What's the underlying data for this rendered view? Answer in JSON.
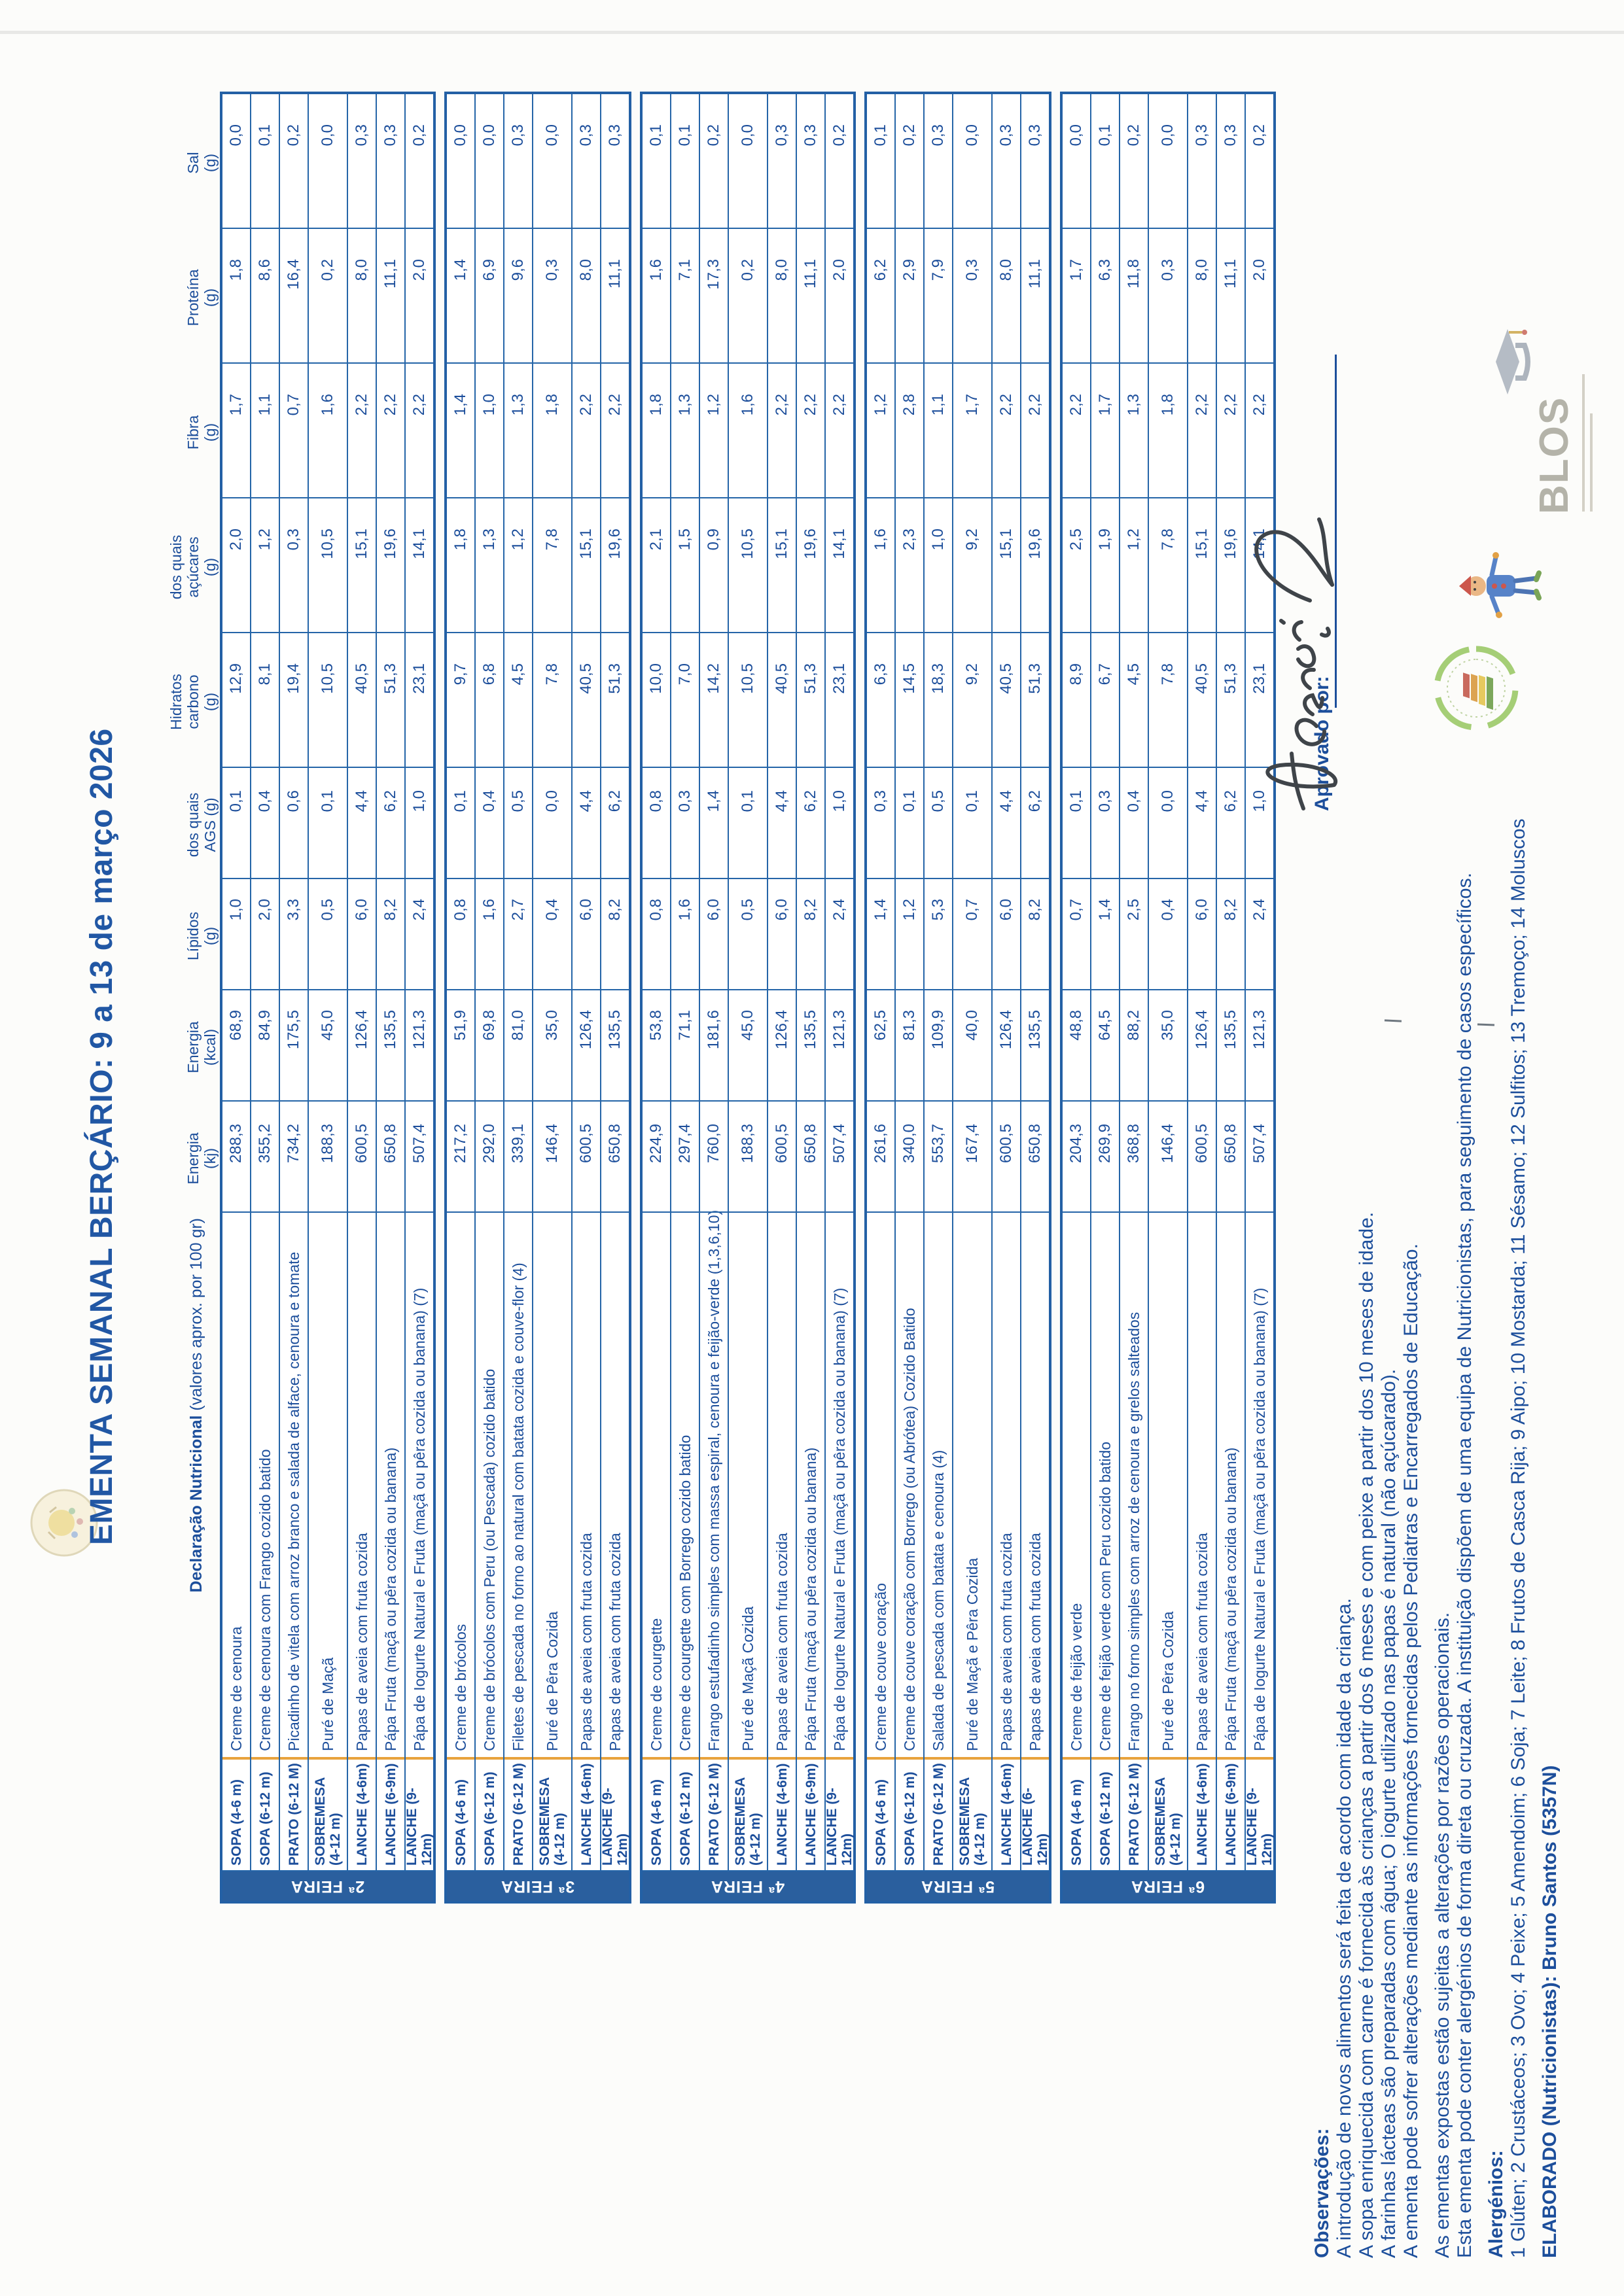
{
  "title": "EMENTA SEMANAL BERÇÁRIO: 9 a 13 de março 2026",
  "nutrition_header": {
    "label_bold": "Declaração Nutricional",
    "label_rest": " (valores aprox. por 100 gr)",
    "columns": [
      [
        "Energia",
        "(kj)"
      ],
      [
        "Energia",
        "(kcal)"
      ],
      [
        "Lípidos",
        "(g)"
      ],
      [
        "dos quais",
        "AGS (g)"
      ],
      [
        "Hidratos",
        "carbono",
        "(g)"
      ],
      [
        "dos quais",
        "açúcares",
        "(g)"
      ],
      [
        "Fibra",
        "(g)"
      ],
      [
        "Proteína",
        "(g)"
      ],
      [
        "Sal",
        "(g)"
      ]
    ]
  },
  "days": [
    {
      "label": "2ª FEIRA",
      "rows": [
        {
          "meal": "SOPA (4-6 m)",
          "dish": "Creme de cenoura",
          "values": [
            "288,3",
            "68,9",
            "1,0",
            "0,1",
            "12,9",
            "2,0",
            "1,7",
            "1,8",
            "0,0"
          ]
        },
        {
          "meal": "SOPA (6-12 m)",
          "dish": "Creme de cenoura com Frango cozido batido",
          "values": [
            "355,2",
            "84,9",
            "2,0",
            "0,4",
            "8,1",
            "1,2",
            "1,1",
            "8,6",
            "0,1"
          ]
        },
        {
          "meal": "PRATO (6-12 M)",
          "dish": "Picadinho de vitela com arroz branco e salada de alface, cenoura e tomate",
          "values": [
            "734,2",
            "175,5",
            "3,3",
            "0,6",
            "19,4",
            "0,3",
            "0,7",
            "16,4",
            "0,2"
          ]
        },
        {
          "meal": "SOBREMESA (4-12 m)",
          "dish": "Puré de Maçã",
          "values": [
            "188,3",
            "45,0",
            "0,5",
            "0,1",
            "10,5",
            "10,5",
            "1,6",
            "0,2",
            "0,0"
          ]
        },
        {
          "meal": "LANCHE (4-6m)",
          "dish": "Papas de aveia com fruta cozida",
          "values": [
            "600,5",
            "126,4",
            "6,0",
            "4,4",
            "40,5",
            "15,1",
            "2,2",
            "8,0",
            "0,3"
          ]
        },
        {
          "meal": "LANCHE (6-9m)",
          "dish": "Pápa Fruta (maçã ou pêra cozida ou banana)",
          "values": [
            "650,8",
            "135,5",
            "8,2",
            "6,2",
            "51,3",
            "19,6",
            "2,2",
            "11,1",
            "0,3"
          ]
        },
        {
          "meal": "LANCHE (9-12m)",
          "dish": "Pápa de Iogurte Natural e Fruta (maçã ou pêra cozida ou banana) (7)",
          "values": [
            "507,4",
            "121,3",
            "2,4",
            "1,0",
            "23,1",
            "14,1",
            "2,2",
            "2,0",
            "0,2"
          ]
        }
      ]
    },
    {
      "label": "3ª FEIRA",
      "rows": [
        {
          "meal": "SOPA (4-6 m)",
          "dish": "Creme de brócolos",
          "values": [
            "217,2",
            "51,9",
            "0,8",
            "0,1",
            "9,7",
            "1,8",
            "1,4",
            "1,4",
            "0,0"
          ]
        },
        {
          "meal": "SOPA (6-12 m)",
          "dish": "Creme de brócolos com Peru (ou Pescada) cozido batido",
          "values": [
            "292,0",
            "69,8",
            "1,6",
            "0,4",
            "6,8",
            "1,3",
            "1,0",
            "6,9",
            "0,0"
          ]
        },
        {
          "meal": "PRATO (6-12 M)",
          "dish": "Filetes de pescada no forno ao natural com batata cozida e couve-flor (4)",
          "values": [
            "339,1",
            "81,0",
            "2,7",
            "0,5",
            "4,5",
            "1,2",
            "1,3",
            "9,6",
            "0,3"
          ]
        },
        {
          "meal": "SOBREMESA (4-12 m)",
          "dish": "Puré de Pêra Cozida",
          "values": [
            "146,4",
            "35,0",
            "0,4",
            "0,0",
            "7,8",
            "7,8",
            "1,8",
            "0,3",
            "0,0"
          ]
        },
        {
          "meal": "LANCHE (4-6m)",
          "dish": "Papas de aveia com fruta cozida",
          "values": [
            "600,5",
            "126,4",
            "6,0",
            "4,4",
            "40,5",
            "15,1",
            "2,2",
            "8,0",
            "0,3"
          ]
        },
        {
          "meal": "LANCHE (9-12m)",
          "dish": "Papas de aveia com fruta cozida",
          "values": [
            "650,8",
            "135,5",
            "8,2",
            "6,2",
            "51,3",
            "19,6",
            "2,2",
            "11,1",
            "0,3"
          ]
        }
      ]
    },
    {
      "label": "4ª FEIRA",
      "rows": [
        {
          "meal": "SOPA (4-6 m)",
          "dish": "Creme de courgette",
          "values": [
            "224,9",
            "53,8",
            "0,8",
            "0,8",
            "10,0",
            "2,1",
            "1,8",
            "1,6",
            "0,1"
          ]
        },
        {
          "meal": "SOPA (6-12 m)",
          "dish": "Creme de courgette com Borrego cozido batido",
          "values": [
            "297,4",
            "71,1",
            "1,6",
            "0,3",
            "7,0",
            "1,5",
            "1,3",
            "7,1",
            "0,1"
          ]
        },
        {
          "meal": "PRATO (6-12 M)",
          "dish": "Frango estufadinho simples com massa espiral, cenoura e feijão-verde (1,3,6,10)",
          "values": [
            "760,0",
            "181,6",
            "6,0",
            "1,4",
            "14,2",
            "0,9",
            "1,2",
            "17,3",
            "0,2"
          ]
        },
        {
          "meal": "SOBREMESA (4-12 m)",
          "dish": "Puré de Maçã Cozida",
          "values": [
            "188,3",
            "45,0",
            "0,5",
            "0,1",
            "10,5",
            "10,5",
            "1,6",
            "0,2",
            "0,0"
          ]
        },
        {
          "meal": "LANCHE (4-6m)",
          "dish": "Papas de aveia com fruta cozida",
          "values": [
            "600,5",
            "126,4",
            "6,0",
            "4,4",
            "40,5",
            "15,1",
            "2,2",
            "8,0",
            "0,3"
          ]
        },
        {
          "meal": "LANCHE (6-9m)",
          "dish": "Pápa Fruta (maçã ou pêra cozida ou banana)",
          "values": [
            "650,8",
            "135,5",
            "8,2",
            "6,2",
            "51,3",
            "19,6",
            "2,2",
            "11,1",
            "0,3"
          ]
        },
        {
          "meal": "LANCHE (9-12m)",
          "dish": "Pápa de Iogurte Natural e Fruta (maçã ou pêra cozida ou banana) (7)",
          "values": [
            "507,4",
            "121,3",
            "2,4",
            "1,0",
            "23,1",
            "14,1",
            "2,2",
            "2,0",
            "0,2"
          ]
        }
      ]
    },
    {
      "label": "5ª FEIRA",
      "rows": [
        {
          "meal": "SOPA (4-6 m)",
          "dish": "Creme de couve coração",
          "values": [
            "261,6",
            "62,5",
            "1,4",
            "0,3",
            "6,3",
            "1,6",
            "1,2",
            "6,2",
            "0,1"
          ]
        },
        {
          "meal": "SOPA (6-12 m)",
          "dish": "Creme de couve coração com Borrego (ou Abrótea) Cozido Batido",
          "values": [
            "340,0",
            "81,3",
            "1,2",
            "0,1",
            "14,5",
            "2,3",
            "2,8",
            "2,9",
            "0,2"
          ]
        },
        {
          "meal": "PRATO (6-12 M)",
          "dish": "Salada de pescada com batata e cenoura (4)",
          "values": [
            "553,7",
            "109,9",
            "5,3",
            "0,5",
            "18,3",
            "1,0",
            "1,1",
            "7,9",
            "0,3"
          ]
        },
        {
          "meal": "SOBREMESA (4-12 m)",
          "dish": "Puré de Maçã e Pêra Cozida",
          "values": [
            "167,4",
            "40,0",
            "0,7",
            "0,1",
            "9,2",
            "9,2",
            "1,7",
            "0,3",
            "0,0"
          ]
        },
        {
          "meal": "LANCHE (4-6m)",
          "dish": "Papas de aveia com fruta cozida",
          "values": [
            "600,5",
            "126,4",
            "6,0",
            "4,4",
            "40,5",
            "15,1",
            "2,2",
            "8,0",
            "0,3"
          ]
        },
        {
          "meal": "LANCHE (6-12m)",
          "dish": "Papas de aveia com fruta cozida",
          "values": [
            "650,8",
            "135,5",
            "8,2",
            "6,2",
            "51,3",
            "19,6",
            "2,2",
            "11,1",
            "0,3"
          ]
        }
      ]
    },
    {
      "label": "6ª FEIRA",
      "rows": [
        {
          "meal": "SOPA (4-6 m)",
          "dish": "Creme de feijão verde",
          "values": [
            "204,3",
            "48,8",
            "0,7",
            "0,1",
            "8,9",
            "2,5",
            "2,2",
            "1,7",
            "0,0"
          ]
        },
        {
          "meal": "SOPA (6-12 m)",
          "dish": "Creme de feijão verde com Peru cozido batido",
          "values": [
            "269,9",
            "64,5",
            "1,4",
            "0,3",
            "6,7",
            "1,9",
            "1,7",
            "6,3",
            "0,1"
          ]
        },
        {
          "meal": "PRATO (6-12 M)",
          "dish": "Frango no forno simples com arroz de cenoura e grelos salteados",
          "values": [
            "368,8",
            "88,2",
            "2,5",
            "0,4",
            "4,5",
            "1,2",
            "1,3",
            "11,8",
            "0,2"
          ]
        },
        {
          "meal": "SOBREMESA (4-12 m)",
          "dish": "Puré de Pêra Cozida",
          "values": [
            "146,4",
            "35,0",
            "0,4",
            "0,0",
            "7,8",
            "7,8",
            "1,8",
            "0,3",
            "0,0"
          ]
        },
        {
          "meal": "LANCHE (4-6m)",
          "dish": "Papas de aveia com fruta cozida",
          "values": [
            "600,5",
            "126,4",
            "6,0",
            "4,4",
            "40,5",
            "15,1",
            "2,2",
            "8,0",
            "0,3"
          ]
        },
        {
          "meal": "LANCHE (6-9m)",
          "dish": "Pápa Fruta (maçã ou pêra cozida ou banana)",
          "values": [
            "650,8",
            "135,5",
            "8,2",
            "6,2",
            "51,3",
            "19,6",
            "2,2",
            "11,1",
            "0,3"
          ]
        },
        {
          "meal": "LANCHE (9-12m)",
          "dish": "Pápa de Iogurte Natural e Fruta (maçã ou pêra cozida ou banana) (7)",
          "values": [
            "507,4",
            "121,3",
            "2,4",
            "1,0",
            "23,1",
            "14,1",
            "2,2",
            "2,0",
            "0,2"
          ]
        }
      ]
    }
  ],
  "footer": {
    "lines": [
      {
        "text": "Observações:",
        "bold": true,
        "gap": false
      },
      {
        "text": "A introdução de novos alimentos será feita de acordo com idade da criança.",
        "bold": false,
        "gap": false
      },
      {
        "text": "A sopa enriquecida com carne é fornecida às crianças a partir dos 6 meses e com peixe a partir dos 10 meses de idade.",
        "bold": false,
        "gap": false
      },
      {
        "text": "A farinhas lácteas são preparadas com água; O iogurte utilizado nas papas é natural (não açúcarado).",
        "bold": false,
        "gap": false
      },
      {
        "text": "A ementa pode sofrer alterações mediante as informações fornecidas pelos Pediatras e Encarregados de Educação.",
        "bold": false,
        "gap": false
      },
      {
        "text": "As ementas expostas estão sujeitas a alterações por razões operacionais.",
        "bold": false,
        "gap": true
      },
      {
        "text": "Esta ementa pode conter alergénios de forma direta ou cruzada. A instituição dispõem de uma equipa de Nutricionistas, para seguimento de casos específicos.",
        "bold": false,
        "gap": false
      },
      {
        "text": "Alergénios:",
        "bold": true,
        "gap": true
      },
      {
        "text": "1 Glúten; 2 Crustáceos; 3 Ovo; 4 Peixe; 5 Amendoim; 6 Soja; 7 Leite; 8 Frutos de Casca Rija; 9 Aipo; 10 Mostarda; 11 Sésamo; 12 Sulfitos; 13 Tremoço; 14 Moluscos",
        "bold": false,
        "gap": false
      },
      {
        "text": "ELABORADO (Nutricionistas): Bruno Santos (5357N)",
        "bold": true,
        "gap": true
      }
    ]
  },
  "approval": {
    "label": "Aprovado por:"
  },
  "logos": {
    "blos_text": "BLOS"
  },
  "colors": {
    "ink_blue": "#1c4e9b",
    "band_blue": "#2a5f9e",
    "border_blue": "#2565a8",
    "accent_orange": "#e8a33d",
    "paper": "#fcfcfa"
  }
}
